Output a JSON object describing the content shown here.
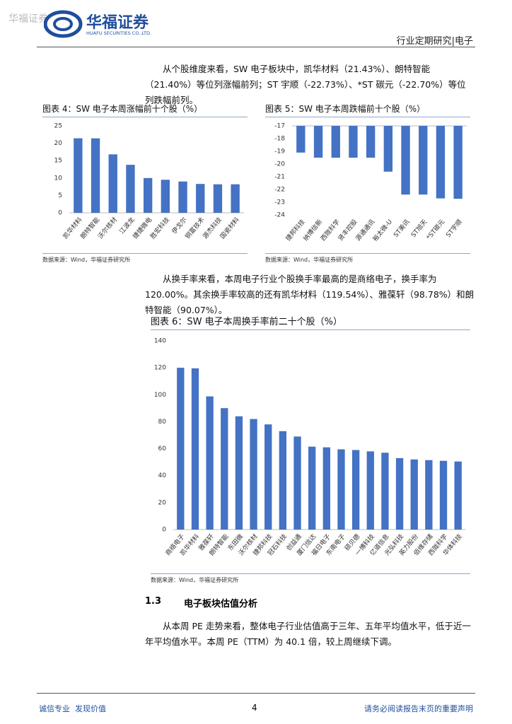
{
  "header": {
    "watermark": "华福证券",
    "logo_cn": "华福证券",
    "logo_en": "HUAFU SECURITIES CO.,LTD.",
    "section": "行业定期研究|电子"
  },
  "paragraphs": [
    "从个股维度来看，SW 电子板块中，凯华材料（21.43%）、朗特智能（21.40%）等位列涨幅前列；ST 宇顺（-22.73%）、*ST 碳元（-22.70%）等位列跌幅前列。",
    "从换手率来看，本周电子行业个股换手率最高的是商络电子，换手率为 120.00%。其余换手率较高的还有凯华材料（119.54%）、雅葆轩（98.78%）和朗特智能（90.07%）。",
    "从本周 PE 走势来看，整体电子行业估值高于三年、五年平均值水平，低于近一年平均值水平。本周 PE（TTM）为 40.1 倍，较上周继续下调。"
  ],
  "chart_data": [
    {
      "type": "bar",
      "title": "图表 4：SW 电子本周涨幅前十个股（%）",
      "source": "数据来源：Wind，华福证券研究所",
      "categories": [
        "凯华材料",
        "朗特智能",
        "沃尔核材",
        "江波龙",
        "捷捷微电",
        "胜宏科技",
        "伊戈尔",
        "铜富技术",
        "源杰科技",
        "国瓷材料"
      ],
      "values": [
        21.43,
        21.4,
        16.8,
        13.8,
        10,
        9.5,
        9,
        8.3,
        8.2,
        8.2
      ],
      "color": "#4472c4",
      "ylim": [
        0,
        25
      ],
      "yticks": [
        0,
        5,
        10,
        15,
        20,
        25
      ]
    },
    {
      "type": "bar",
      "title": "图表 5：SW 电子本周跌幅前十个股（%）",
      "source": "数据来源：Wind，华福证券研究所",
      "categories": [
        "捷邦科技",
        "纳博信新",
        "西陇科学",
        "贤丰控股",
        "源通通讯",
        "裕太微-U",
        "ST美讯",
        "ST旭天",
        "*ST碳元",
        "ST宇顺"
      ],
      "values": [
        -19.1,
        -19.5,
        -19.5,
        -19.5,
        -19.5,
        -20.6,
        -22.4,
        -22.4,
        -22.7,
        -22.73
      ],
      "color": "#4472c4",
      "ylim": [
        -24,
        -17
      ],
      "yticks": [
        -24,
        -23,
        -22,
        -21,
        -20,
        -19,
        -18,
        -17
      ]
    },
    {
      "type": "bar",
      "title": "图表 6：SW 电子本周换手率前二十个股（%）",
      "source": "数据来源：Wind，华福证券研究所",
      "categories": [
        "商络电子",
        "凯华材料",
        "雅葆轩",
        "朗特智能",
        "东田微",
        "沃尔核材",
        "捷邦科技",
        "冠石科技",
        "创益通",
        "厦门信达",
        "福日电子",
        "东南电子",
        "硕贝德",
        "一博科技",
        "亿道信息",
        "光弘科技",
        "英力股份",
        "佰维存储",
        "西陇科学",
        "华体科技"
      ],
      "values": [
        120,
        119.54,
        98.78,
        90.07,
        84,
        82,
        78,
        73,
        69,
        61.5,
        61,
        59.5,
        59,
        58,
        57,
        53,
        52,
        51.5,
        51,
        50.5
      ],
      "color": "#4472c4",
      "ylim": [
        0,
        140
      ],
      "yticks": [
        0,
        20,
        40,
        60,
        80,
        100,
        120,
        140
      ]
    }
  ],
  "section": {
    "number": "1.3",
    "title": "电子板块估值分析"
  },
  "footer": {
    "left": "诚信专业  发现价值",
    "page": "4",
    "right": "请务必阅读报告末页的重要声明"
  }
}
